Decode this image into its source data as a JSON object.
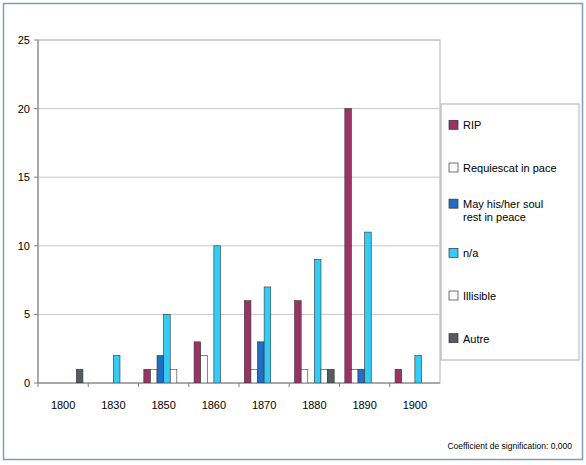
{
  "chart_data": {
    "type": "bar",
    "categories": [
      "1800",
      "1830",
      "1850",
      "1860",
      "1870",
      "1880",
      "1890",
      "1900"
    ],
    "series": [
      {
        "name": "RIP",
        "color": "#993366",
        "values": [
          0,
          0,
          1,
          3,
          6,
          6,
          20,
          1
        ]
      },
      {
        "name": "Requiescat in pace",
        "color": "#ffffff",
        "values": [
          0,
          0,
          1,
          2,
          1,
          1,
          1,
          0
        ]
      },
      {
        "name": "May his/her soul rest in peace",
        "color": "#1f6fc5",
        "values": [
          0,
          0,
          2,
          0,
          3,
          0,
          1,
          0
        ]
      },
      {
        "name": "n/a",
        "color": "#33ccf5",
        "values": [
          0,
          2,
          5,
          10,
          7,
          9,
          11,
          2
        ]
      },
      {
        "name": "Illisible",
        "color": "#ffffff",
        "values": [
          0,
          0,
          1,
          0,
          0,
          1,
          0,
          0
        ]
      },
      {
        "name": "Autre",
        "color": "#555a60",
        "values": [
          1,
          0,
          0,
          0,
          0,
          1,
          0,
          0
        ]
      }
    ],
    "ylim": [
      0,
      25
    ],
    "yticks": [
      0,
      5,
      10,
      15,
      20,
      25
    ],
    "grid": true,
    "legend": "right",
    "annotations": [
      "Coefficient de signification: 0,000"
    ]
  }
}
